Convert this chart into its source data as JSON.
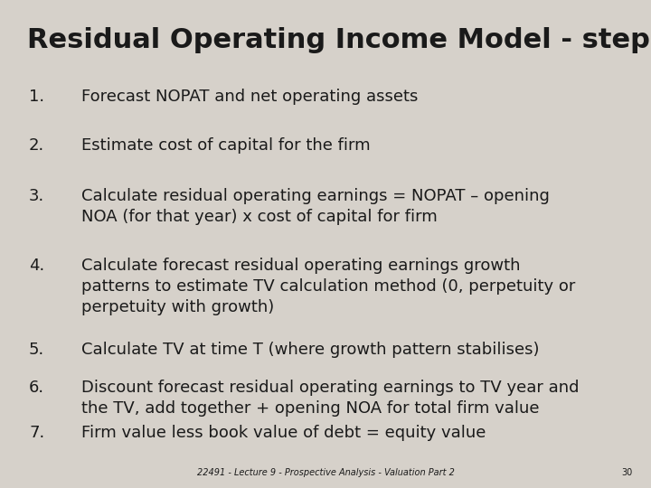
{
  "title": "Residual Operating Income Model - steps",
  "background_color": "#d6d1ca",
  "title_color": "#1a1a1a",
  "text_color": "#1a1a1a",
  "title_fontsize": 22,
  "body_fontsize": 13,
  "footer_text": "22491 - Lecture 9 - Prospective Analysis - Valuation Part 2",
  "footer_page": "30",
  "items": [
    {
      "number": "1.",
      "text": "Forecast NOPAT and net operating assets"
    },
    {
      "number": "2.",
      "text": "Estimate cost of capital for the firm"
    },
    {
      "number": "3.",
      "text": "Calculate residual operating earnings = NOPAT – opening\nNOA (for that year) x cost of capital for firm"
    },
    {
      "number": "4.",
      "text": "Calculate forecast residual operating earnings growth\npatterns to estimate TV calculation method (0, perpetuity or\nperpetuity with growth)"
    },
    {
      "number": "5.",
      "text": "Calculate TV at time T (where growth pattern stabilises)"
    },
    {
      "number": "6.",
      "text": "Discount forecast residual operating earnings to TV year and\nthe TV, add together + opening NOA for total firm value"
    },
    {
      "number": "7.",
      "text": "Firm value less book value of debt = equity value"
    }
  ]
}
